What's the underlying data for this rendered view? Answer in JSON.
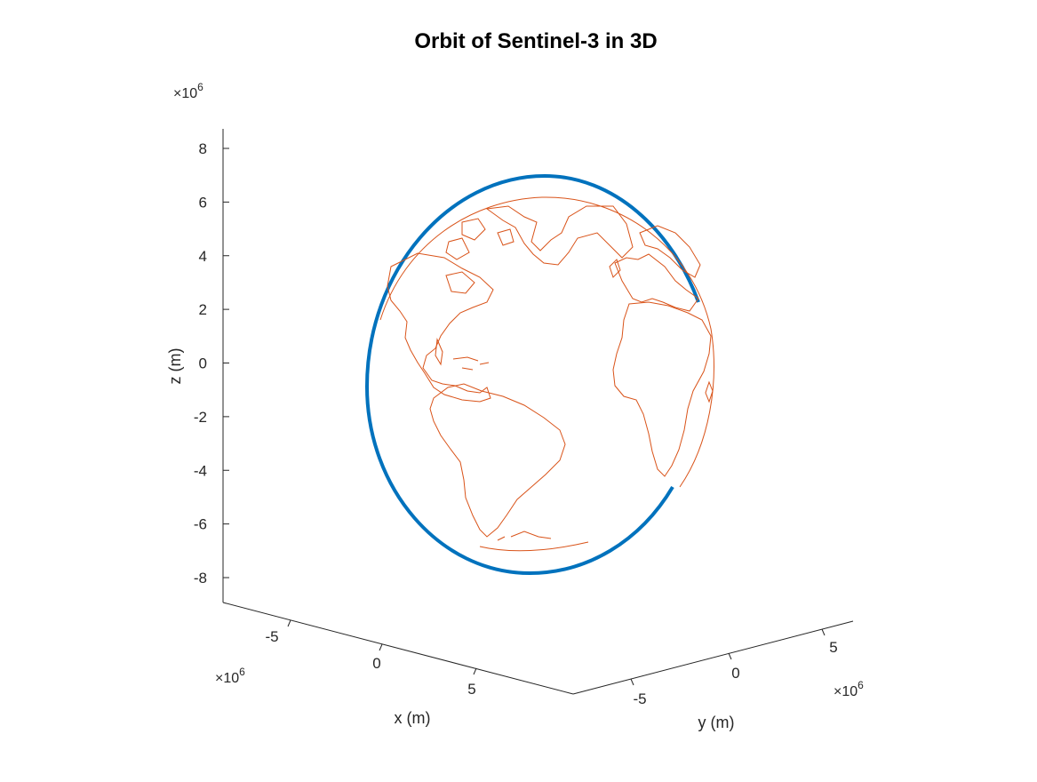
{
  "chart_data": {
    "type": "line",
    "projection": "3d",
    "title": "Orbit of Sentinel-3 in 3D",
    "xlabel": "x (m)",
    "ylabel": "y (m)",
    "zlabel": "z (m)",
    "x_ticks": [
      "-5",
      "0",
      "5"
    ],
    "y_ticks": [
      "-5",
      "0",
      "5"
    ],
    "z_ticks": [
      "8",
      "6",
      "4",
      "2",
      "0",
      "-2",
      "-4",
      "-6",
      "-8"
    ],
    "x_exponent": "×10",
    "x_exponent_power": "6",
    "y_exponent": "×10",
    "y_exponent_power": "6",
    "z_exponent": "×10",
    "z_exponent_power": "6",
    "series": [
      {
        "color": "#0072BD",
        "kind": "orbit (closed curve)"
      },
      {
        "color": "#D95319",
        "kind": "coastlines on globe"
      }
    ],
    "grid": false
  }
}
